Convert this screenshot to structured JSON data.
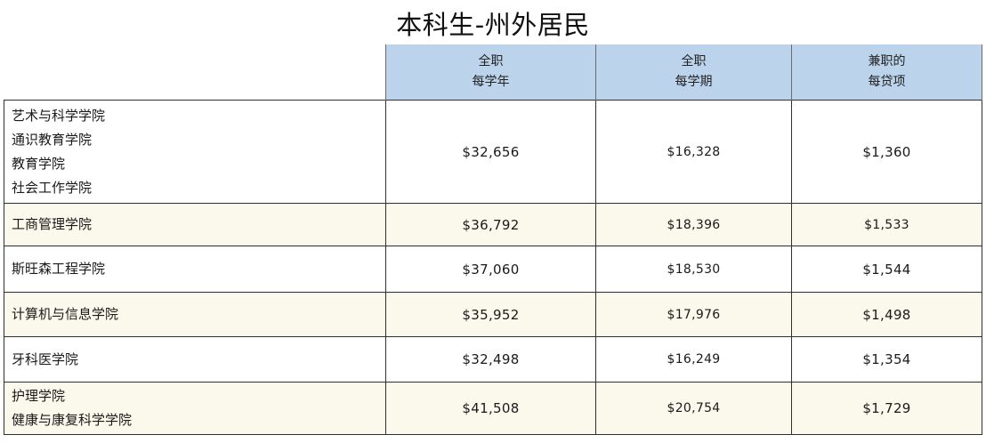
{
  "title": "本科生-州外居民",
  "columns": [
    {
      "line1": "全职",
      "line2": "每学年"
    },
    {
      "line1": "全职",
      "line2": "每学期"
    },
    {
      "line1": "兼职的",
      "line2": "每贷项"
    }
  ],
  "rows": [
    {
      "schools": [
        "艺术与科学学院",
        "通识教育学院",
        "教育学院",
        "社会工作学院"
      ],
      "full_time_year": "$32,656",
      "full_time_semester": "$16,328",
      "part_time_credit": "$1,360"
    },
    {
      "schools": [
        "工商管理学院"
      ],
      "full_time_year": "$36,792",
      "full_time_semester": "$18,396",
      "part_time_credit": "$1,533"
    },
    {
      "schools": [
        "斯旺森工程学院"
      ],
      "full_time_year": "$37,060",
      "full_time_semester": "$18,530",
      "part_time_credit": "$1,544"
    },
    {
      "schools": [
        "计算机与信息学院"
      ],
      "full_time_year": "$35,952",
      "full_time_semester": "$17,976",
      "part_time_credit": "$1,498"
    },
    {
      "schools": [
        "牙科医学院"
      ],
      "full_time_year": "$32,498",
      "full_time_semester": "$16,249",
      "part_time_credit": "$1,354"
    },
    {
      "schools": [
        "护理学院",
        "健康与康复科学学院"
      ],
      "full_time_year": "$41,508",
      "full_time_semester": "$20,754",
      "part_time_credit": "$1,729"
    }
  ],
  "colors": {
    "header_bg": "#bcd3ec",
    "row_cream": "#fbf8ec",
    "row_white": "#ffffff",
    "border": "#2f2f2f"
  }
}
